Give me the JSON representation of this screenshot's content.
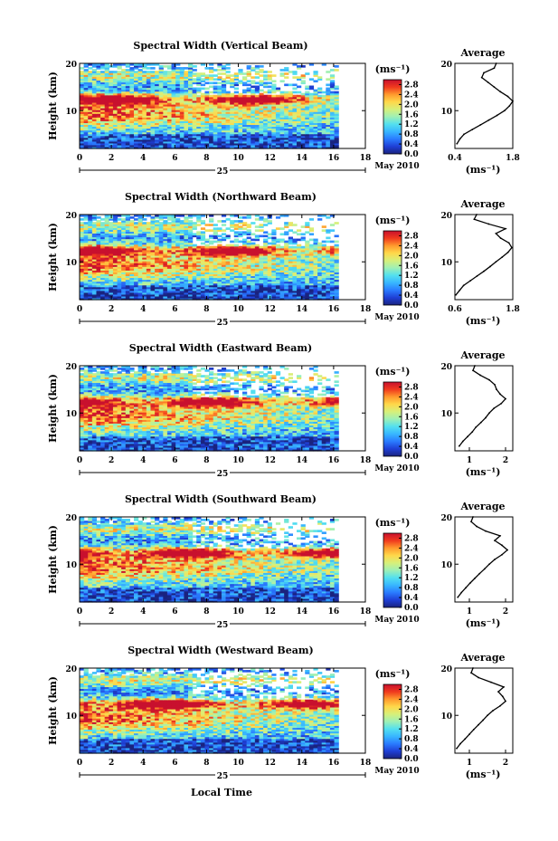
{
  "figure": {
    "xlabel": "Local Time",
    "date_day": "25",
    "date_month": "May 2010",
    "ylabel": "Height (km)",
    "colorbar_unit": "(ms⁻¹)",
    "profile_title": "Average",
    "colormap": [
      "#1a237e",
      "#1f3fd6",
      "#2a7bff",
      "#38b6ff",
      "#53e0ef",
      "#9ef0b6",
      "#d7f07a",
      "#ffd84a",
      "#ff9a2e",
      "#f03a1e",
      "#c8102e"
    ]
  },
  "chart_data": [
    {
      "type": "heatmap",
      "title": "Spectral Width (Vertical Beam)",
      "xlabel": "Local Time",
      "ylabel": "Height (km)",
      "xlim": [
        0,
        18
      ],
      "ylim": [
        2,
        20
      ],
      "x_ticks": [
        "0",
        "2",
        "4",
        "6",
        "8",
        "10",
        "12",
        "14",
        "16",
        "18"
      ],
      "y_ticks": [
        "10",
        "20"
      ],
      "data_x_range": [
        0,
        16.3
      ],
      "colorbar": {
        "ticks": [
          "0.0",
          "0.4",
          "0.8",
          "1.2",
          "1.6",
          "2.0",
          "2.4",
          "2.8"
        ],
        "range": [
          0,
          3.0
        ]
      },
      "avg_profile": {
        "title": "Average",
        "xlabel": "(ms⁻¹)",
        "xticks": [
          "0.4",
          "1.8"
        ],
        "yticks": [
          "10",
          "20"
        ],
        "xlim": [
          0.4,
          1.8
        ],
        "height": [
          3,
          4,
          5,
          6,
          7,
          8,
          9,
          10,
          11,
          12,
          13,
          14,
          15,
          16,
          17,
          18,
          19,
          20
        ],
        "value": [
          0.45,
          0.52,
          0.62,
          0.82,
          1.02,
          1.22,
          1.42,
          1.6,
          1.72,
          1.8,
          1.68,
          1.5,
          1.35,
          1.2,
          1.05,
          1.1,
          1.35,
          1.4
        ]
      }
    },
    {
      "type": "heatmap",
      "title": "Spectral Width (Northward Beam)",
      "xlabel": "Local Time",
      "ylabel": "Height (km)",
      "xlim": [
        0,
        18
      ],
      "ylim": [
        2,
        20
      ],
      "x_ticks": [
        "0",
        "2",
        "4",
        "6",
        "8",
        "10",
        "12",
        "14",
        "16",
        "18"
      ],
      "y_ticks": [
        "10",
        "20"
      ],
      "data_x_range": [
        0,
        16.3
      ],
      "colorbar": {
        "ticks": [
          "0.0",
          "0.4",
          "0.8",
          "1.2",
          "1.6",
          "2.0",
          "2.4",
          "2.8"
        ],
        "range": [
          0,
          3.0
        ]
      },
      "avg_profile": {
        "title": "Average",
        "xlabel": "(ms⁻¹)",
        "xticks": [
          "0.6",
          "1.8"
        ],
        "yticks": [
          "10",
          "20"
        ],
        "xlim": [
          0.6,
          1.8
        ],
        "height": [
          3,
          4,
          5,
          6,
          7,
          8,
          9,
          10,
          11,
          12,
          13,
          14,
          15,
          16,
          17,
          18,
          19,
          20
        ],
        "value": [
          0.62,
          0.7,
          0.78,
          0.92,
          1.06,
          1.2,
          1.33,
          1.45,
          1.58,
          1.7,
          1.78,
          1.72,
          1.55,
          1.45,
          1.65,
          1.3,
          1.0,
          1.05
        ]
      }
    },
    {
      "type": "heatmap",
      "title": "Spectral Width (Eastward Beam)",
      "xlabel": "Local Time",
      "ylabel": "Height (km)",
      "xlim": [
        0,
        18
      ],
      "ylim": [
        2,
        20
      ],
      "x_ticks": [
        "0",
        "2",
        "4",
        "6",
        "8",
        "10",
        "12",
        "14",
        "16",
        "18"
      ],
      "y_ticks": [
        "10",
        "20"
      ],
      "data_x_range": [
        0,
        16.3
      ],
      "colorbar": {
        "ticks": [
          "0.0",
          "0.4",
          "0.8",
          "1.2",
          "1.6",
          "2.0",
          "2.4",
          "2.8"
        ],
        "range": [
          0,
          3.0
        ]
      },
      "avg_profile": {
        "title": "Average",
        "xlabel": "(ms⁻¹)",
        "xticks": [
          "1",
          "2"
        ],
        "yticks": [
          "10",
          "20"
        ],
        "xlim": [
          0.6,
          2.2
        ],
        "height": [
          3,
          4,
          5,
          6,
          7,
          8,
          9,
          10,
          11,
          12,
          13,
          14,
          15,
          16,
          17,
          18,
          19,
          20
        ],
        "value": [
          0.72,
          0.82,
          0.95,
          1.08,
          1.18,
          1.32,
          1.45,
          1.55,
          1.68,
          1.88,
          2.0,
          1.85,
          1.75,
          1.7,
          1.55,
          1.3,
          1.1,
          1.15
        ]
      }
    },
    {
      "type": "heatmap",
      "title": "Spectral Width (Southward Beam)",
      "xlabel": "Local Time",
      "ylabel": "Height (km)",
      "xlim": [
        0,
        18
      ],
      "ylim": [
        2,
        20
      ],
      "x_ticks": [
        "0",
        "2",
        "4",
        "6",
        "8",
        "10",
        "12",
        "14",
        "16",
        "18"
      ],
      "y_ticks": [
        "10",
        "20"
      ],
      "data_x_range": [
        0,
        16.3
      ],
      "colorbar": {
        "ticks": [
          "0.0",
          "0.4",
          "0.8",
          "1.2",
          "1.6",
          "2.0",
          "2.4",
          "2.8"
        ],
        "range": [
          0,
          3.0
        ]
      },
      "avg_profile": {
        "title": "Average",
        "xlabel": "(ms⁻¹)",
        "xticks": [
          "1",
          "2"
        ],
        "yticks": [
          "10",
          "20"
        ],
        "xlim": [
          0.6,
          2.2
        ],
        "height": [
          3,
          4,
          5,
          6,
          7,
          8,
          9,
          10,
          11,
          12,
          13,
          14,
          15,
          16,
          17,
          18,
          19,
          20
        ],
        "value": [
          0.68,
          0.78,
          0.9,
          1.02,
          1.15,
          1.28,
          1.42,
          1.55,
          1.7,
          1.9,
          2.05,
          1.9,
          1.7,
          1.85,
          1.45,
          1.2,
          1.05,
          1.1
        ]
      }
    },
    {
      "type": "heatmap",
      "title": "Spectral Width (Westward Beam)",
      "xlabel": "Local Time",
      "ylabel": "Height (km)",
      "xlim": [
        0,
        18
      ],
      "ylim": [
        2,
        20
      ],
      "x_ticks": [
        "0",
        "2",
        "4",
        "6",
        "8",
        "10",
        "12",
        "14",
        "16",
        "18"
      ],
      "y_ticks": [
        "10",
        "20"
      ],
      "data_x_range": [
        0,
        16.3
      ],
      "colorbar": {
        "ticks": [
          "0.0",
          "0.4",
          "0.8",
          "1.2",
          "1.6",
          "2.0",
          "2.4",
          "2.8"
        ],
        "range": [
          0,
          3.0
        ]
      },
      "avg_profile": {
        "title": "Average",
        "xlabel": "(ms⁻¹)",
        "xticks": [
          "1",
          "2"
        ],
        "yticks": [
          "10",
          "20"
        ],
        "xlim": [
          0.6,
          2.2
        ],
        "height": [
          3,
          4,
          5,
          6,
          7,
          8,
          9,
          10,
          11,
          12,
          13,
          14,
          15,
          16,
          17,
          18,
          19,
          20
        ],
        "value": [
          0.65,
          0.75,
          0.88,
          1.0,
          1.12,
          1.25,
          1.38,
          1.5,
          1.65,
          1.85,
          2.0,
          1.92,
          1.8,
          1.95,
          1.6,
          1.25,
          1.05,
          1.1
        ]
      }
    }
  ]
}
